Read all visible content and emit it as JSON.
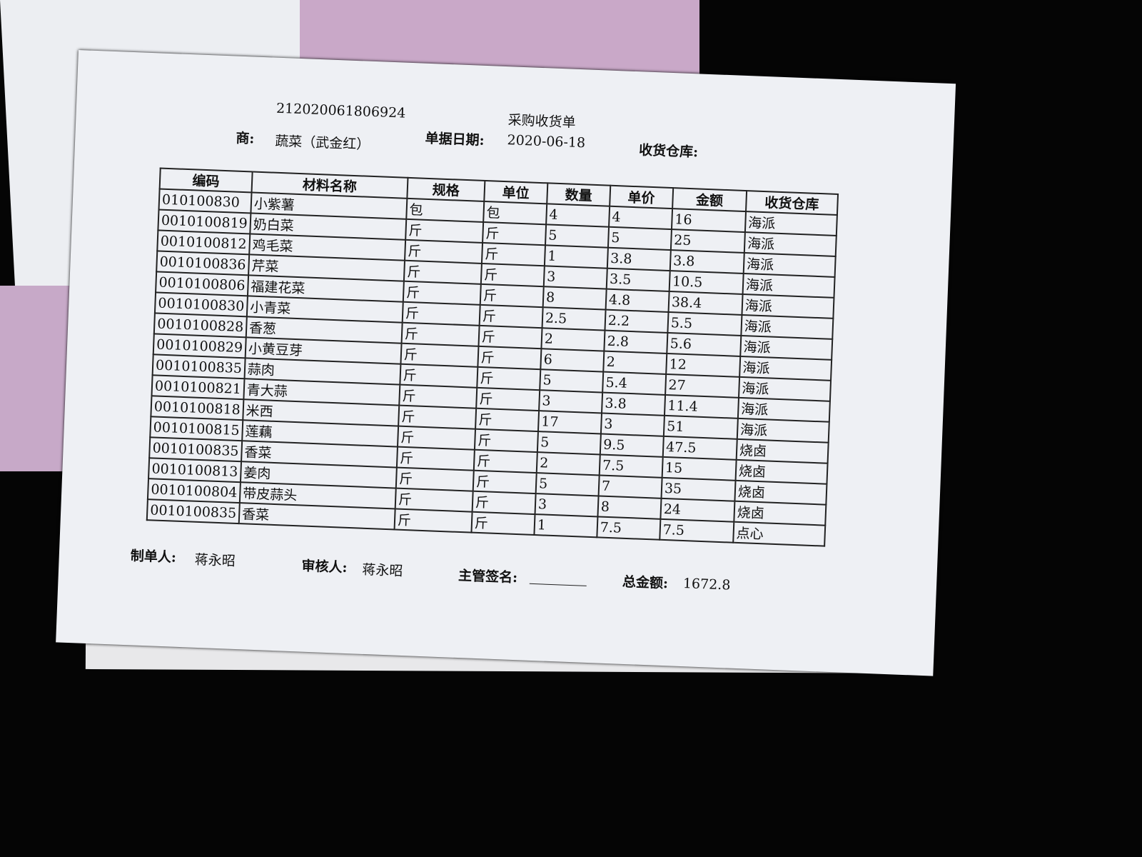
{
  "header": {
    "doc_no": "212020061806924",
    "title": "采购收货单",
    "date_label": "单据日期:",
    "date": "2020-06-18",
    "supplier_label": "商:",
    "supplier": "蔬菜（武金红）",
    "warehouse_label": "收货仓库:"
  },
  "table": {
    "columns": [
      "编码",
      "材料名称",
      "规格",
      "单位",
      "数量",
      "单价",
      "金额",
      "收货仓库"
    ],
    "rows": [
      [
        "010100830",
        "小紫薯",
        "包",
        "包",
        4,
        4,
        16,
        "海派"
      ],
      [
        "0010100819",
        "奶白菜",
        "斤",
        "斤",
        5,
        5,
        25,
        "海派"
      ],
      [
        "0010100812",
        "鸡毛菜",
        "斤",
        "斤",
        1,
        3.8,
        3.8,
        "海派"
      ],
      [
        "0010100836",
        "芹菜",
        "斤",
        "斤",
        3,
        3.5,
        10.5,
        "海派"
      ],
      [
        "0010100806",
        "福建花菜",
        "斤",
        "斤",
        8,
        4.8,
        38.4,
        "海派"
      ],
      [
        "0010100830",
        "小青菜",
        "斤",
        "斤",
        2.5,
        2.2,
        5.5,
        "海派"
      ],
      [
        "0010100828",
        "香葱",
        "斤",
        "斤",
        2,
        2.8,
        5.6,
        "海派"
      ],
      [
        "0010100829",
        "小黄豆芽",
        "斤",
        "斤",
        6,
        2,
        12,
        "海派"
      ],
      [
        "0010100835",
        "蒜肉",
        "斤",
        "斤",
        5,
        5.4,
        27,
        "海派"
      ],
      [
        "0010100821",
        "青大蒜",
        "斤",
        "斤",
        3,
        3.8,
        11.4,
        "海派"
      ],
      [
        "0010100818",
        "米西",
        "斤",
        "斤",
        17,
        3,
        51,
        "海派"
      ],
      [
        "0010100815",
        "莲藕",
        "斤",
        "斤",
        5,
        9.5,
        47.5,
        "烧卤"
      ],
      [
        "0010100835",
        "香菜",
        "斤",
        "斤",
        2,
        7.5,
        15,
        "烧卤"
      ],
      [
        "0010100813",
        "姜肉",
        "斤",
        "斤",
        5,
        7,
        35,
        "烧卤"
      ],
      [
        "0010100804",
        "带皮蒜头",
        "斤",
        "斤",
        3,
        8,
        24,
        "烧卤"
      ],
      [
        "0010100835",
        "香菜",
        "斤",
        "斤",
        1,
        7.5,
        7.5,
        "点心"
      ]
    ]
  },
  "footer": {
    "maker_label": "制单人:",
    "maker": "蒋永昭",
    "reviewer_label": "审核人:",
    "reviewer": "蒋永昭",
    "manager_label": "主管签名:",
    "total_label": "总金额:",
    "total": 1672.8
  }
}
